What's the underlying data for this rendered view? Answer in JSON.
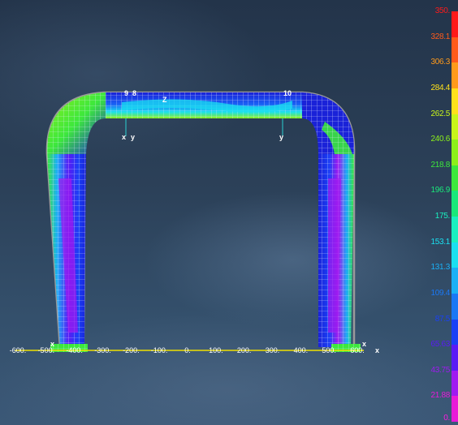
{
  "legend": {
    "items": [
      {
        "label": "350.",
        "color": "#ff1a1a"
      },
      {
        "label": "328.1",
        "color": "#ff5a1a"
      },
      {
        "label": "306.3",
        "color": "#ff9a1a"
      },
      {
        "label": "284.4",
        "color": "#ffe11a"
      },
      {
        "label": "262.5",
        "color": "#c8f51a"
      },
      {
        "label": "240.6",
        "color": "#8cf01a"
      },
      {
        "label": "218.8",
        "color": "#3ce83c"
      },
      {
        "label": "196.9",
        "color": "#1ae87a"
      },
      {
        "label": "175.",
        "color": "#1af0c0"
      },
      {
        "label": "153.1",
        "color": "#1ae0f0"
      },
      {
        "label": "131.3",
        "color": "#1ab0f5"
      },
      {
        "label": "109.4",
        "color": "#1a78f5"
      },
      {
        "label": "87.5",
        "color": "#1a40f5"
      },
      {
        "label": "65.63",
        "color": "#5a1af5"
      },
      {
        "label": "43.75",
        "color": "#a01af0"
      },
      {
        "label": "21.88",
        "color": "#e81ad8"
      },
      {
        "label": "0.",
        "color": "#ff1ae0"
      }
    ]
  },
  "axis": {
    "scale_labels": [
      "-600.",
      "-500.",
      "-400.",
      "-300.",
      "-200.",
      "-100.",
      "0.",
      "100.",
      "200.",
      "300.",
      "400.",
      "500.",
      "600."
    ],
    "x_symbol": "x"
  },
  "model": {
    "node_labels": {
      "left_top": "9",
      "left_top2": "8",
      "right_top": "10",
      "center": "Z"
    },
    "coord_left_x": "x",
    "coord_left_y": "y",
    "coord_right_y": "y",
    "corner_markers": [
      "x",
      "x",
      "x"
    ]
  },
  "colors": {
    "mesh_blue": "#1a22d8",
    "mesh_line": "#e8ecff",
    "frame_outline": "#aaaaaa",
    "axis_line": "#f0e000"
  }
}
